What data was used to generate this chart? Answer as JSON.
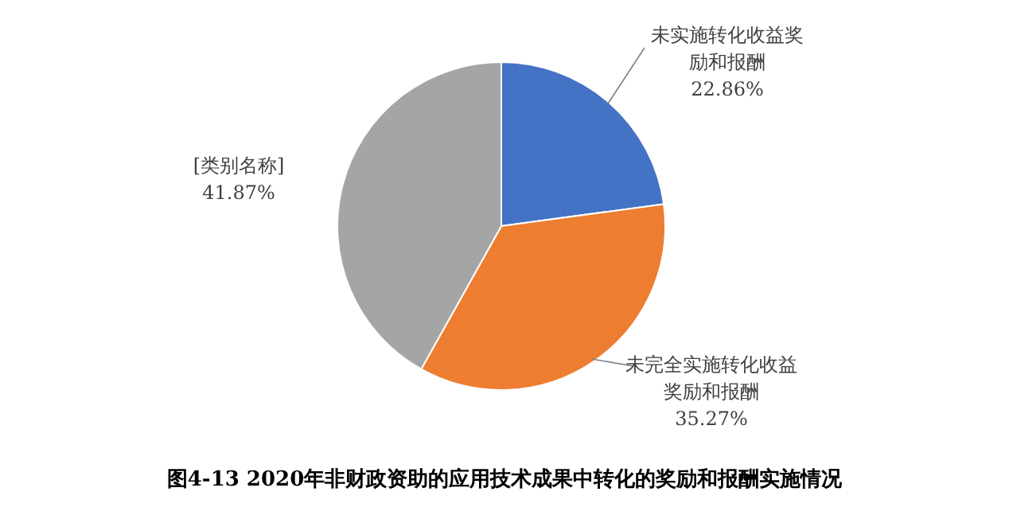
{
  "chart_data": {
    "type": "pie",
    "title": "图4-13  2020年非财政资助的应用技术成果中转化的奖励和报酬实施情况",
    "categories": [
      "未实施转化收益奖励和报酬",
      "未完全实施转化收益奖励和报酬",
      "[类别名称]"
    ],
    "values": [
      22.86,
      35.27,
      41.87
    ],
    "colors": [
      "#4472c4",
      "#ed7d31",
      "#a5a5a5"
    ],
    "value_labels": [
      "22.86%",
      "35.27%",
      "41.87%"
    ]
  }
}
